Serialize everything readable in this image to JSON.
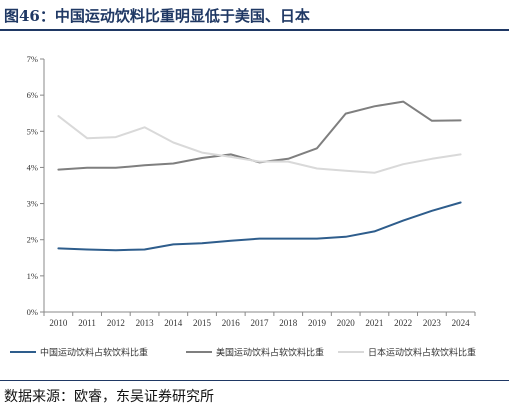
{
  "figure": {
    "title": "图46：中国运动饮料比重明显低于美国、日本",
    "source": "数据来源：欧睿，东吴证券研究所"
  },
  "colors": {
    "china": "#2e5d8c",
    "usa": "#7f7f7f",
    "japan": "#d9d9d9",
    "title": "#1f3864"
  },
  "chart_data": {
    "type": "line",
    "x": [
      "2010",
      "2011",
      "2012",
      "2013",
      "2014",
      "2015",
      "2016",
      "2017",
      "2018",
      "2019",
      "2020",
      "2021",
      "2022",
      "2023",
      "2024"
    ],
    "ylim": [
      0,
      7
    ],
    "yticks": [
      "0%",
      "1%",
      "2%",
      "3%",
      "4%",
      "5%",
      "6%",
      "7%"
    ],
    "grid": false,
    "legend_position": "bottom",
    "series": [
      {
        "name": "中国运动饮料占软饮料比重",
        "color": "#2e5d8c",
        "values": [
          1.76,
          1.73,
          1.71,
          1.73,
          1.87,
          1.9,
          1.97,
          2.03,
          2.03,
          2.03,
          2.08,
          2.23,
          2.53,
          2.8,
          3.03
        ]
      },
      {
        "name": "美国运动饮料占软饮料比重",
        "color": "#7f7f7f",
        "values": [
          3.94,
          3.99,
          3.99,
          4.06,
          4.11,
          4.26,
          4.36,
          4.14,
          4.24,
          4.53,
          5.49,
          5.69,
          5.82,
          5.29,
          5.3
        ]
      },
      {
        "name": "日本运动饮料占软饮料比重",
        "color": "#d9d9d9",
        "values": [
          5.42,
          4.81,
          4.84,
          5.11,
          4.69,
          4.41,
          4.29,
          4.16,
          4.16,
          3.97,
          3.91,
          3.85,
          4.09,
          4.24,
          4.36
        ]
      }
    ]
  }
}
